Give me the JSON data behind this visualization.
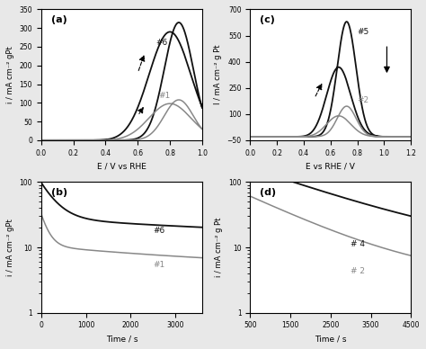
{
  "fig_bg": "#e8e8e8",
  "ax_bg": "#ffffff",
  "panel_a": {
    "label": "(a)",
    "xlabel": "E / V vs RHE",
    "ylabel": "i / mA cm⁻² gPt",
    "xlim": [
      0,
      1.0
    ],
    "ylim": [
      0,
      350
    ],
    "yticks": [
      0,
      50,
      100,
      150,
      200,
      250,
      300,
      350
    ],
    "xticks": [
      0,
      0.2,
      0.4,
      0.6,
      0.8,
      1.0
    ],
    "curve6_color": "#111111",
    "curve1_color": "#888888",
    "label6": "#6",
    "label1": "#1"
  },
  "panel_c": {
    "label": "(c)",
    "xlabel": "E vs RHE / V",
    "ylabel": "I / mA cm⁻² g Pt",
    "xlim": [
      0,
      1.2
    ],
    "ylim": [
      -50,
      700
    ],
    "yticks": [
      -50,
      100,
      250,
      400,
      550,
      700
    ],
    "xticks": [
      0,
      0.2,
      0.4,
      0.6,
      0.8,
      1.0,
      1.2
    ],
    "curve5_color": "#111111",
    "curve2_color": "#888888",
    "label5": "#5",
    "label2": "#2"
  },
  "panel_b": {
    "label": "(b)",
    "xlabel": "Time / s",
    "ylabel": "i / mA cm⁻² gPt",
    "xlim": [
      0,
      3600
    ],
    "ylim_log": [
      1,
      100
    ],
    "xticks": [
      0,
      1000,
      2000,
      3000
    ],
    "curve6_color": "#111111",
    "curve1_color": "#888888",
    "label6": "#6",
    "label1": "#1"
  },
  "panel_d": {
    "label": "(d)",
    "xlabel": "Time / s",
    "ylabel": "i / mA cm⁻² g Pt",
    "xlim": [
      500,
      4500
    ],
    "ylim_log": [
      1,
      100
    ],
    "xticks": [
      500,
      1500,
      2500,
      3500,
      4500
    ],
    "curve4_color": "#111111",
    "curve2_color": "#888888",
    "label4": "# 4",
    "label2": "# 2"
  }
}
